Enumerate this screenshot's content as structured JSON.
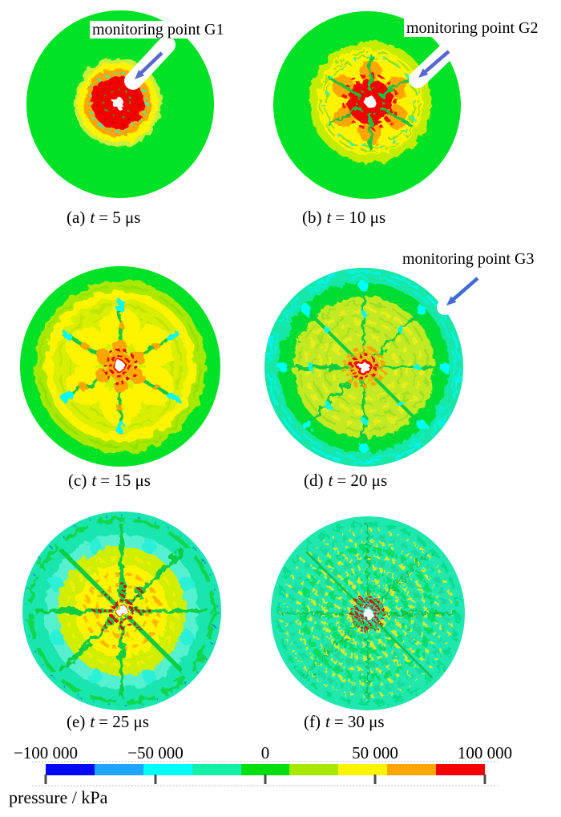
{
  "figure": {
    "annotations": {
      "g1": {
        "text": "monitoring point G1"
      },
      "g2": {
        "text": "monitoring point G2"
      },
      "g3": {
        "text": "monitoring point G3"
      }
    },
    "captions": {
      "a": {
        "prefix": "(a)",
        "t": "t",
        "rest": "= 5 μs"
      },
      "b": {
        "prefix": "(b)",
        "t": "t",
        "rest": "= 10 μs"
      },
      "c": {
        "prefix": "(c)",
        "t": "t",
        "rest": "= 15 μs"
      },
      "d": {
        "prefix": "(d)",
        "t": "t",
        "rest": "= 20 μs"
      },
      "e": {
        "prefix": "(e)",
        "t": "t",
        "rest": "= 25 μs"
      },
      "f": {
        "prefix": "(f)",
        "t": "t",
        "rest": "= 30 μs"
      }
    },
    "colorbar": {
      "unit_label": "pressure / kPa",
      "tick_labels": [
        "−100 000",
        "−50 000",
        "0",
        "50 000",
        "100 000"
      ],
      "tick_values_kpa": [
        -100000,
        -50000,
        0,
        50000,
        100000
      ],
      "segment_colors": [
        "#0009f2",
        "#1fa7ff",
        "#00ffff",
        "#14f0a6",
        "#00e011",
        "#a8e800",
        "#fff400",
        "#ffa600",
        "#f40000"
      ]
    },
    "colors": {
      "arrow_violet": "#5a68ce",
      "arrow_blue": "#3e6bd6",
      "disk_green": "#00e226",
      "disk_turquoise": "#19e7ab"
    }
  },
  "chart_data": {
    "type": "heatmap",
    "title": "",
    "snapshot_times_us": [
      5,
      10,
      15,
      20,
      25,
      30
    ],
    "subfigure_labels": [
      "(a)",
      "(b)",
      "(c)",
      "(d)",
      "(e)",
      "(f)"
    ],
    "colorbar": {
      "label": "pressure / kPa",
      "min": -100000,
      "max": 100000,
      "ticks": [
        -100000,
        -50000,
        0,
        50000,
        100000
      ]
    },
    "monitoring_points": [
      "G1",
      "G2",
      "G3"
    ]
  }
}
